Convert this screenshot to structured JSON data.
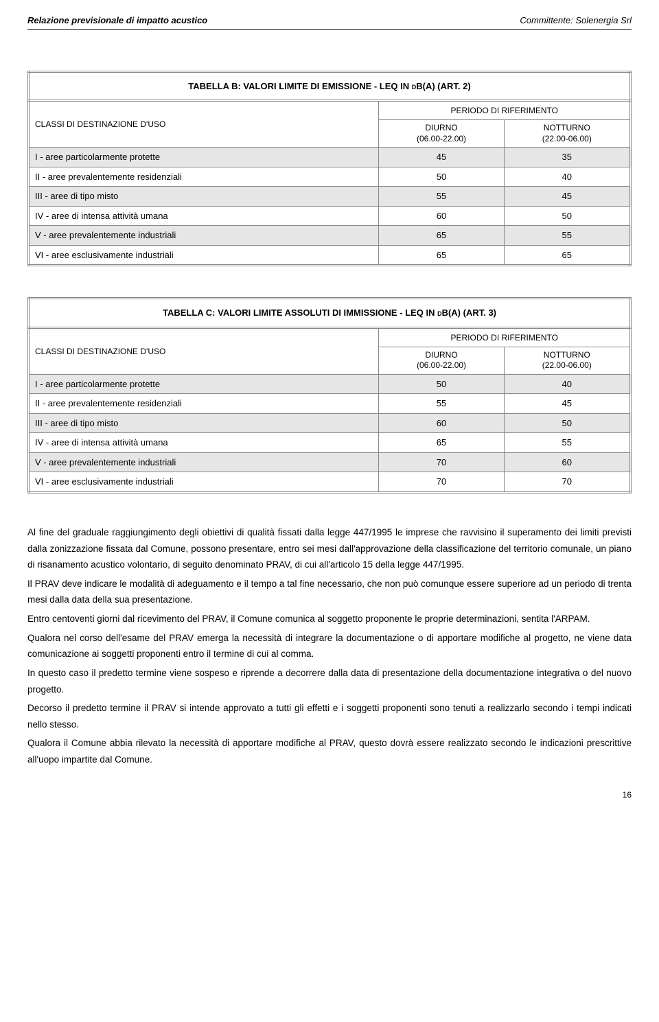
{
  "header": {
    "left": "Relazione previsionale di impatto acustico",
    "right": "Committente: Solenergia Srl"
  },
  "tableB": {
    "title": "TABELLA B: VALORI LIMITE DI EMISSIONE - LEQ IN dB(A) (ART. 2)",
    "classi_label": "CLASSI DI DESTINAZIONE D'USO",
    "periodo_label": "PERIODO DI RIFERIMENTO",
    "col_diurno_1": "DIURNO",
    "col_diurno_2": "(06.00-22.00)",
    "col_notturno_1": "NOTTURNO",
    "col_notturno_2": "(22.00-06.00)",
    "rows": [
      {
        "label": "I  - aree particolarmente protette",
        "d": "45",
        "n": "35",
        "shaded": true
      },
      {
        "label": "II - aree prevalentemente residenziali",
        "d": "50",
        "n": "40",
        "shaded": false
      },
      {
        "label": "III - aree di tipo misto",
        "d": "55",
        "n": "45",
        "shaded": true
      },
      {
        "label": "IV - aree di intensa attività umana",
        "d": "60",
        "n": "50",
        "shaded": false
      },
      {
        "label": "V - aree prevalentemente industriali",
        "d": "65",
        "n": "55",
        "shaded": true
      },
      {
        "label": "VI - aree esclusivamente industriali",
        "d": "65",
        "n": "65",
        "shaded": false
      }
    ]
  },
  "tableC": {
    "title": "TABELLA C: VALORI LIMITE ASSOLUTI DI IMMISSIONE - LEQ IN dB(A) (ART. 3)",
    "classi_label": "CLASSI DI DESTINAZIONE D'USO",
    "periodo_label": "PERIODO DI RIFERIMENTO",
    "col_diurno_1": "DIURNO",
    "col_diurno_2": "(06.00-22.00)",
    "col_notturno_1": "NOTTURNO",
    "col_notturno_2": "(22.00-06.00)",
    "rows": [
      {
        "label": "I  - aree particolarmente protette",
        "d": "50",
        "n": "40",
        "shaded": true
      },
      {
        "label": "II - aree prevalentemente residenziali",
        "d": "55",
        "n": "45",
        "shaded": false
      },
      {
        "label": "III - aree di tipo misto",
        "d": "60",
        "n": "50",
        "shaded": true
      },
      {
        "label": "IV - aree di intensa attività umana",
        "d": "65",
        "n": "55",
        "shaded": false
      },
      {
        "label": "V - aree prevalentemente industriali",
        "d": "70",
        "n": "60",
        "shaded": true
      },
      {
        "label": "VI - aree esclusivamente industriali",
        "d": "70",
        "n": "70",
        "shaded": false
      }
    ]
  },
  "paragraphs": [
    "Al fine del graduale raggiungimento degli obiettivi di qualità fissati dalla legge 447/1995 le imprese che ravvisino il superamento dei limiti previsti dalla zonizzazione fissata dal Comune, possono presentare, entro sei mesi dall'approvazione della classificazione del territorio comunale, un piano di risanamento acustico volontario, di seguito denominato PRAV, di cui all'articolo 15 della legge 447/1995.",
    "Il PRAV deve indicare le modalità di adeguamento e il tempo a tal fine necessario, che non può comunque essere superiore ad un periodo di trenta mesi dalla data della sua presentazione.",
    "Entro centoventi giorni dal ricevimento del PRAV, il Comune comunica al soggetto proponente le proprie determinazioni, sentita l'ARPAM.",
    "Qualora nel corso dell'esame del PRAV emerga la necessità di integrare la documentazione o di apportare modifiche al progetto, ne viene data comunicazione ai soggetti proponenti entro il termine di cui al comma.",
    "In questo caso il predetto termine viene sospeso e riprende a decorrere dalla data di presentazione della documentazione integrativa o del nuovo progetto.",
    "Decorso il predetto termine il PRAV si intende approvato a tutti gli effetti e i soggetti proponenti sono tenuti a realizzarlo secondo i tempi indicati nello stesso.",
    "Qualora il Comune abbia rilevato la necessità di apportare modifiche al PRAV, questo dovrà essere realizzato secondo le indicazioni prescrittive all'uopo impartite dal Comune."
  ],
  "page_number": "16"
}
